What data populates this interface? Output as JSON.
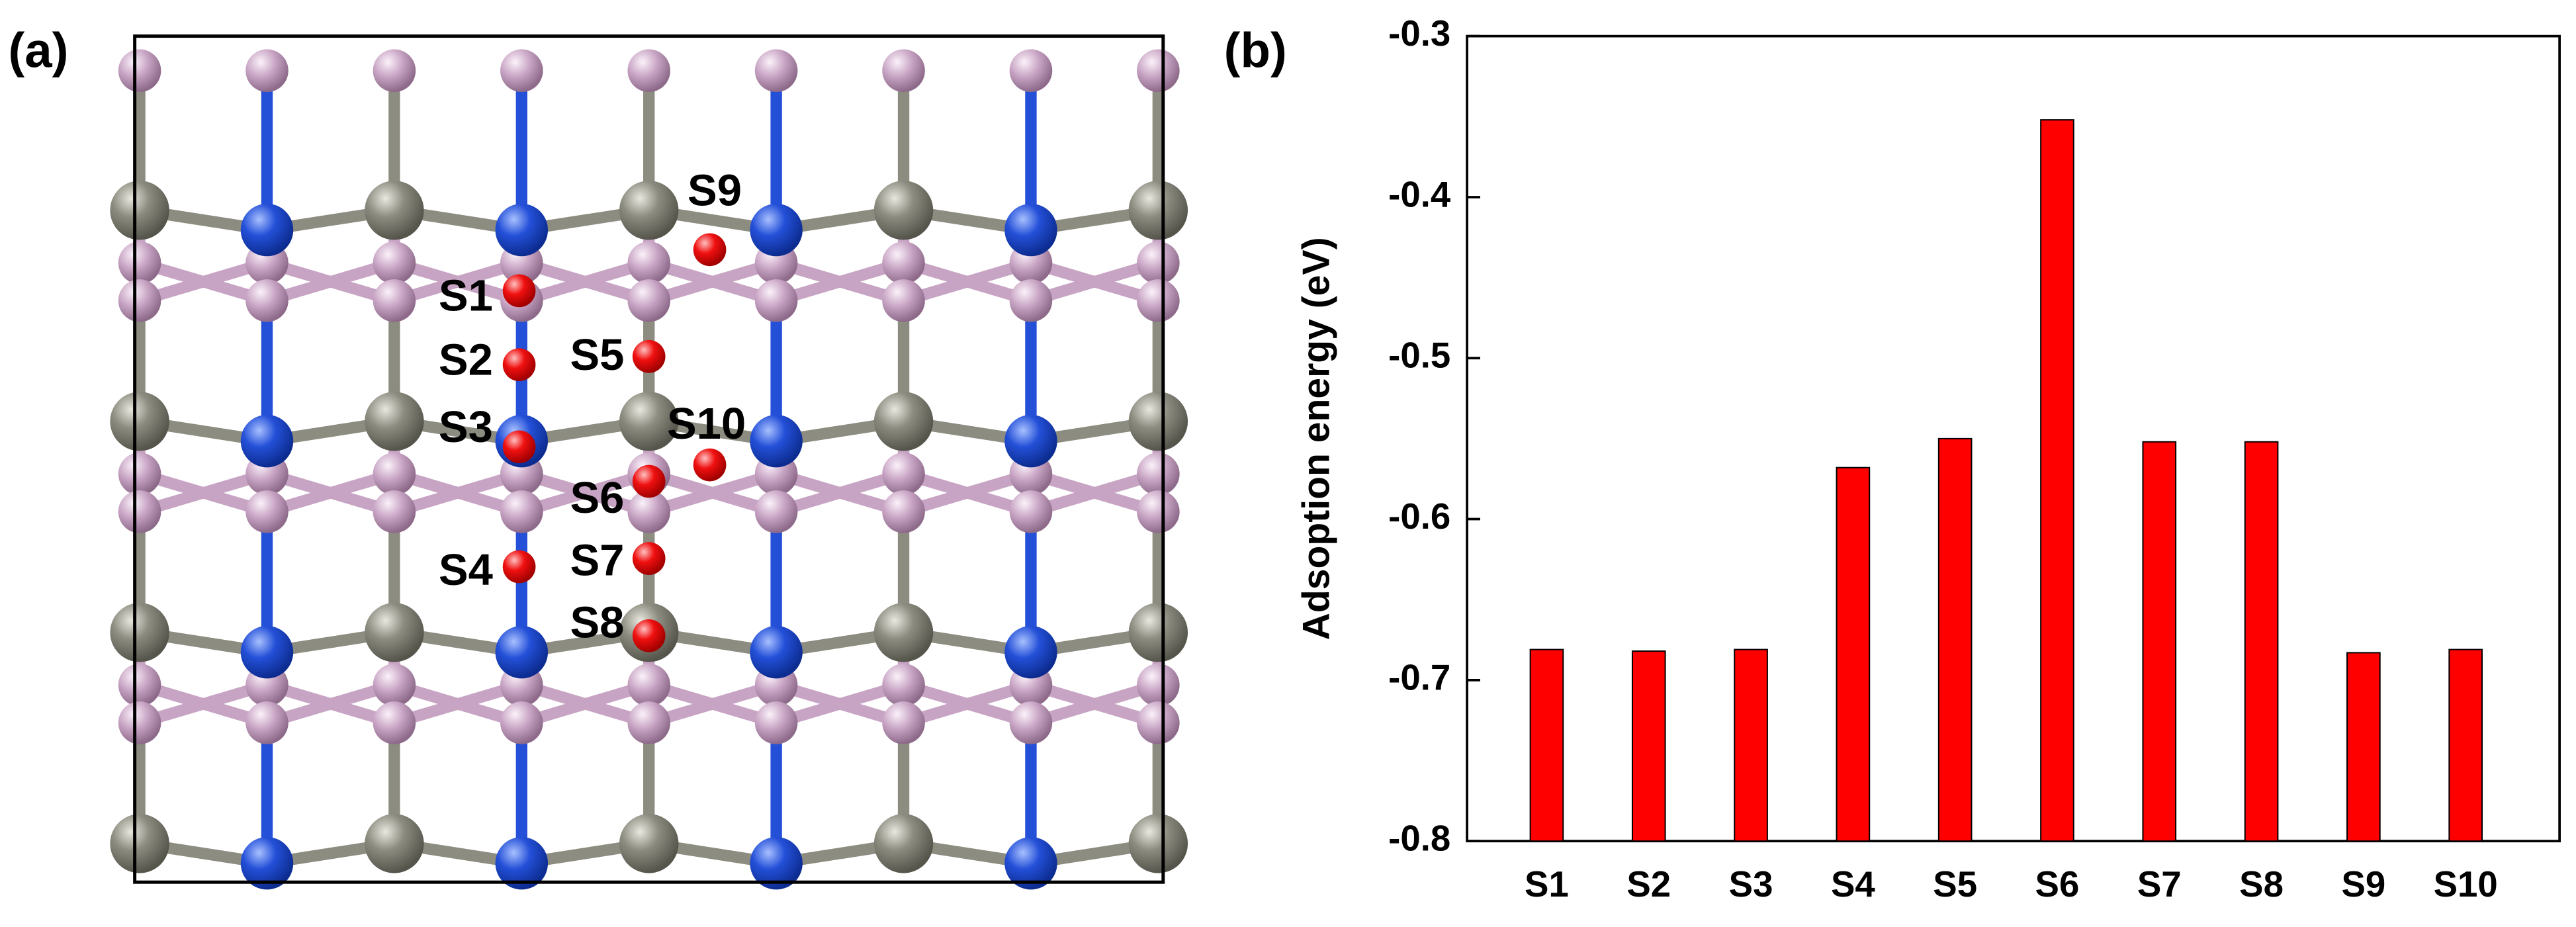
{
  "panel_labels": [
    "(a)",
    "(b)"
  ],
  "structure": {
    "sites": [
      "S1",
      "S2",
      "S3",
      "S4",
      "S5",
      "S6",
      "S7",
      "S8",
      "S9",
      "S10"
    ]
  },
  "chart_data": {
    "type": "bar",
    "y_label": "Adsoption energy (eV)",
    "categories": [
      "S1",
      "S2",
      "S3",
      "S4",
      "S5",
      "S6",
      "S7",
      "S8",
      "S9",
      "S10"
    ],
    "values": [
      -0.681,
      -0.682,
      -0.681,
      -0.568,
      -0.55,
      -0.352,
      -0.552,
      -0.552,
      -0.683,
      -0.681
    ],
    "color": "#ff0000",
    "ylim": [
      -0.8,
      -0.3
    ],
    "yticks": [
      -0.8,
      -0.7,
      -0.6,
      -0.5,
      -0.4,
      -0.3
    ]
  }
}
